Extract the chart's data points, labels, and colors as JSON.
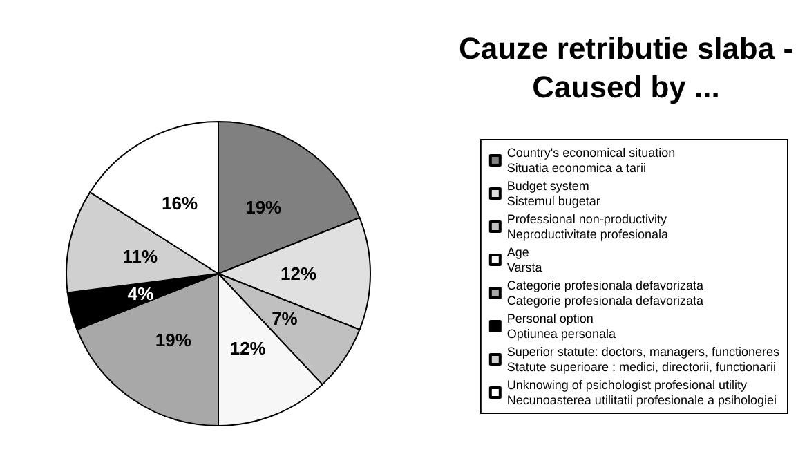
{
  "chart_data": {
    "type": "pie",
    "title": "Cauze retributie slaba -\nCaused by ...",
    "categories": [
      "Country's economical situation\nSituatia economica a tarii",
      "Budget system\nSistemul bugetar",
      "Professional non-productivity\nNeproductivitate profesionala",
      "Age\nVarsta",
      "Categorie profesionala defavorizata\nCategorie profesionala defavorizata",
      "Personal option\nOptiunea personala",
      "Superior statute: doctors, managers, functioneres\nStatute superioare : medici, directorii, functionarii",
      "Unknowing of psichologist profesional utility\nNecunoasterea utilitatii profesionale a psihologiei"
    ],
    "values": [
      19,
      12,
      7,
      12,
      19,
      4,
      11,
      16
    ],
    "value_labels": [
      "19%",
      "12%",
      "7%",
      "12%",
      "19%",
      "4%",
      "11%",
      "16%"
    ],
    "colors": [
      "#808080",
      "#e0e0e0",
      "#c0c0c0",
      "#f7f7f7",
      "#a8a8a8",
      "#000000",
      "#d0d0d0",
      "#ffffff"
    ],
    "legend": "right"
  }
}
